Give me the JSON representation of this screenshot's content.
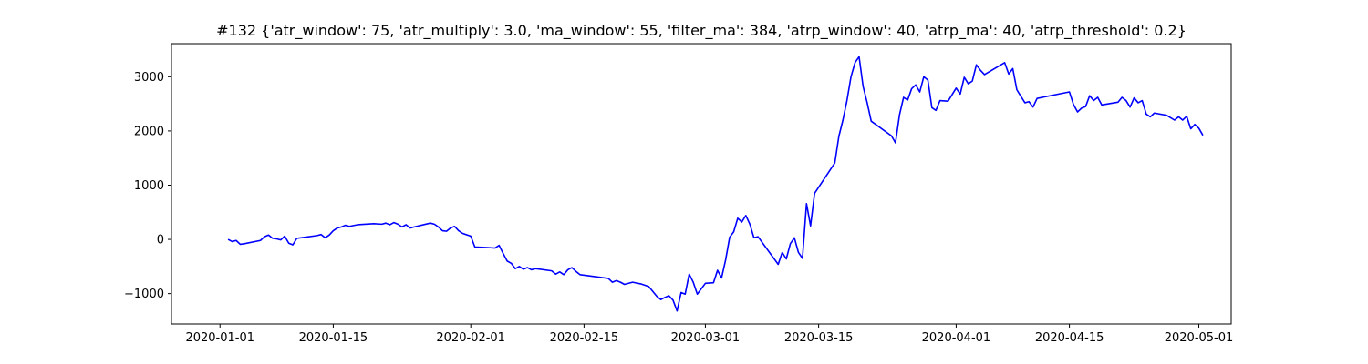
{
  "chart_data": {
    "type": "line",
    "title": "#132 {'atr_window': 75, 'atr_multiply': 3.0, 'ma_window': 55, 'filter_ma': 384, 'atrp_window': 40, 'atrp_ma': 40, 'atrp_threshold': 0.2}",
    "xlabel": "",
    "ylabel": "",
    "xlim": [
      "2019-12-26",
      "2020-05-05"
    ],
    "ylim": [
      -1560,
      3610
    ],
    "x_ticks": [
      "2020-01-01",
      "2020-01-15",
      "2020-02-01",
      "2020-02-15",
      "2020-03-01",
      "2020-03-15",
      "2020-04-01",
      "2020-04-15",
      "2020-05-01"
    ],
    "y_ticks": [
      -1000,
      0,
      1000,
      2000,
      3000
    ],
    "y_tick_labels": [
      "−1000",
      "0",
      "1000",
      "2000",
      "3000"
    ],
    "grid": false,
    "line_color": "#0000ff",
    "series": [
      {
        "points": [
          [
            "2020-01-02",
            0
          ],
          [
            "2020-01-02 12:00",
            -40
          ],
          [
            "2020-01-03",
            -20
          ],
          [
            "2020-01-03 12:00",
            -90
          ],
          [
            "2020-01-04",
            -80
          ],
          [
            "2020-01-06",
            -20
          ],
          [
            "2020-01-06 12:00",
            50
          ],
          [
            "2020-01-07",
            80
          ],
          [
            "2020-01-07 12:00",
            20
          ],
          [
            "2020-01-08",
            10
          ],
          [
            "2020-01-08 12:00",
            -10
          ],
          [
            "2020-01-09",
            60
          ],
          [
            "2020-01-09 12:00",
            -70
          ],
          [
            "2020-01-10",
            -100
          ],
          [
            "2020-01-10 12:00",
            20
          ],
          [
            "2020-01-11",
            30
          ],
          [
            "2020-01-13",
            70
          ],
          [
            "2020-01-13 12:00",
            90
          ],
          [
            "2020-01-14",
            30
          ],
          [
            "2020-01-14 12:00",
            80
          ],
          [
            "2020-01-15",
            160
          ],
          [
            "2020-01-15 12:00",
            210
          ],
          [
            "2020-01-16",
            230
          ],
          [
            "2020-01-16 12:00",
            260
          ],
          [
            "2020-01-17",
            240
          ],
          [
            "2020-01-18",
            270
          ],
          [
            "2020-01-20",
            290
          ],
          [
            "2020-01-21",
            280
          ],
          [
            "2020-01-21 12:00",
            300
          ],
          [
            "2020-01-22",
            270
          ],
          [
            "2020-01-22 12:00",
            310
          ],
          [
            "2020-01-23",
            280
          ],
          [
            "2020-01-23 12:00",
            230
          ],
          [
            "2020-01-24",
            270
          ],
          [
            "2020-01-24 12:00",
            210
          ],
          [
            "2020-01-25",
            230
          ],
          [
            "2020-01-27",
            300
          ],
          [
            "2020-01-27 12:00",
            280
          ],
          [
            "2020-01-28",
            230
          ],
          [
            "2020-01-28 12:00",
            160
          ],
          [
            "2020-01-29",
            150
          ],
          [
            "2020-01-29 12:00",
            210
          ],
          [
            "2020-01-30",
            240
          ],
          [
            "2020-01-30 12:00",
            160
          ],
          [
            "2020-01-31",
            110
          ],
          [
            "2020-02-01",
            60
          ],
          [
            "2020-02-01 12:00",
            -140
          ],
          [
            "2020-02-03",
            -150
          ],
          [
            "2020-02-04",
            -160
          ],
          [
            "2020-02-04 12:00",
            -110
          ],
          [
            "2020-02-05",
            -260
          ],
          [
            "2020-02-05 12:00",
            -400
          ],
          [
            "2020-02-06",
            -440
          ],
          [
            "2020-02-06 12:00",
            -540
          ],
          [
            "2020-02-07",
            -500
          ],
          [
            "2020-02-07 12:00",
            -550
          ],
          [
            "2020-02-08",
            -520
          ],
          [
            "2020-02-08 12:00",
            -560
          ],
          [
            "2020-02-09",
            -540
          ],
          [
            "2020-02-11",
            -580
          ],
          [
            "2020-02-11 12:00",
            -640
          ],
          [
            "2020-02-12",
            -600
          ],
          [
            "2020-02-12 12:00",
            -650
          ],
          [
            "2020-02-13",
            -560
          ],
          [
            "2020-02-13 12:00",
            -520
          ],
          [
            "2020-02-14",
            -590
          ],
          [
            "2020-02-14 12:00",
            -650
          ],
          [
            "2020-02-16",
            -680
          ],
          [
            "2020-02-18",
            -720
          ],
          [
            "2020-02-18 12:00",
            -790
          ],
          [
            "2020-02-19",
            -760
          ],
          [
            "2020-02-19 12:00",
            -790
          ],
          [
            "2020-02-20",
            -830
          ],
          [
            "2020-02-21",
            -790
          ],
          [
            "2020-02-22",
            -820
          ],
          [
            "2020-02-23",
            -870
          ],
          [
            "2020-02-24",
            -1050
          ],
          [
            "2020-02-24 12:00",
            -1110
          ],
          [
            "2020-02-25",
            -1070
          ],
          [
            "2020-02-25 12:00",
            -1040
          ],
          [
            "2020-02-26",
            -1120
          ],
          [
            "2020-02-26 12:00",
            -1320
          ],
          [
            "2020-02-27",
            -980
          ],
          [
            "2020-02-27 12:00",
            -1010
          ],
          [
            "2020-02-28",
            -640
          ],
          [
            "2020-02-28 12:00",
            -790
          ],
          [
            "2020-02-29",
            -1010
          ],
          [
            "2020-03-01",
            -810
          ],
          [
            "2020-03-02",
            -800
          ],
          [
            "2020-03-02 12:00",
            -570
          ],
          [
            "2020-03-03",
            -710
          ],
          [
            "2020-03-03 12:00",
            -380
          ],
          [
            "2020-03-04",
            40
          ],
          [
            "2020-03-04 12:00",
            140
          ],
          [
            "2020-03-05",
            390
          ],
          [
            "2020-03-05 12:00",
            320
          ],
          [
            "2020-03-06",
            440
          ],
          [
            "2020-03-06 12:00",
            280
          ],
          [
            "2020-03-07",
            30
          ],
          [
            "2020-03-07 12:00",
            50
          ],
          [
            "2020-03-10",
            -460
          ],
          [
            "2020-03-10 12:00",
            -240
          ],
          [
            "2020-03-11",
            -360
          ],
          [
            "2020-03-11 12:00",
            -80
          ],
          [
            "2020-03-12",
            30
          ],
          [
            "2020-03-12 12:00",
            -240
          ],
          [
            "2020-03-13",
            -350
          ],
          [
            "2020-03-13 12:00",
            660
          ],
          [
            "2020-03-14",
            250
          ],
          [
            "2020-03-14 12:00",
            850
          ],
          [
            "2020-03-17",
            1410
          ],
          [
            "2020-03-17 12:00",
            1900
          ],
          [
            "2020-03-18",
            2200
          ],
          [
            "2020-03-18 12:00",
            2560
          ],
          [
            "2020-03-19",
            3000
          ],
          [
            "2020-03-19 12:00",
            3260
          ],
          [
            "2020-03-20",
            3370
          ],
          [
            "2020-03-20 12:00",
            2820
          ],
          [
            "2020-03-21",
            2520
          ],
          [
            "2020-03-21 12:00",
            2180
          ],
          [
            "2020-03-24",
            1910
          ],
          [
            "2020-03-24 12:00",
            1780
          ],
          [
            "2020-03-25",
            2300
          ],
          [
            "2020-03-25 12:00",
            2620
          ],
          [
            "2020-03-26",
            2570
          ],
          [
            "2020-03-26 12:00",
            2780
          ],
          [
            "2020-03-27",
            2850
          ],
          [
            "2020-03-27 12:00",
            2720
          ],
          [
            "2020-03-28",
            3000
          ],
          [
            "2020-03-28 12:00",
            2940
          ],
          [
            "2020-03-29",
            2430
          ],
          [
            "2020-03-29 12:00",
            2380
          ],
          [
            "2020-03-30",
            2560
          ],
          [
            "2020-03-31",
            2550
          ],
          [
            "2020-04-01",
            2790
          ],
          [
            "2020-04-01 12:00",
            2680
          ],
          [
            "2020-04-02",
            2990
          ],
          [
            "2020-04-02 12:00",
            2870
          ],
          [
            "2020-04-03",
            2920
          ],
          [
            "2020-04-03 12:00",
            3220
          ],
          [
            "2020-04-04",
            3120
          ],
          [
            "2020-04-04 12:00",
            3040
          ],
          [
            "2020-04-07",
            3260
          ],
          [
            "2020-04-07 12:00",
            3050
          ],
          [
            "2020-04-08",
            3150
          ],
          [
            "2020-04-08 12:00",
            2760
          ],
          [
            "2020-04-09",
            2640
          ],
          [
            "2020-04-09 12:00",
            2520
          ],
          [
            "2020-04-10",
            2540
          ],
          [
            "2020-04-10 12:00",
            2440
          ],
          [
            "2020-04-11",
            2600
          ],
          [
            "2020-04-15",
            2720
          ],
          [
            "2020-04-15 12:00",
            2490
          ],
          [
            "2020-04-16",
            2350
          ],
          [
            "2020-04-16 12:00",
            2420
          ],
          [
            "2020-04-17",
            2450
          ],
          [
            "2020-04-17 12:00",
            2650
          ],
          [
            "2020-04-18",
            2560
          ],
          [
            "2020-04-18 12:00",
            2620
          ],
          [
            "2020-04-19",
            2480
          ],
          [
            "2020-04-21",
            2530
          ],
          [
            "2020-04-21 12:00",
            2620
          ],
          [
            "2020-04-22",
            2560
          ],
          [
            "2020-04-22 12:00",
            2440
          ],
          [
            "2020-04-23",
            2610
          ],
          [
            "2020-04-23 12:00",
            2520
          ],
          [
            "2020-04-24",
            2560
          ],
          [
            "2020-04-24 12:00",
            2310
          ],
          [
            "2020-04-25",
            2260
          ],
          [
            "2020-04-25 12:00",
            2330
          ],
          [
            "2020-04-27",
            2290
          ],
          [
            "2020-04-28",
            2200
          ],
          [
            "2020-04-28 12:00",
            2260
          ],
          [
            "2020-04-29",
            2200
          ],
          [
            "2020-04-29 12:00",
            2270
          ],
          [
            "2020-04-30",
            2040
          ],
          [
            "2020-04-30 12:00",
            2120
          ],
          [
            "2020-05-01",
            2050
          ],
          [
            "2020-05-01 12:00",
            1920
          ]
        ]
      }
    ]
  }
}
